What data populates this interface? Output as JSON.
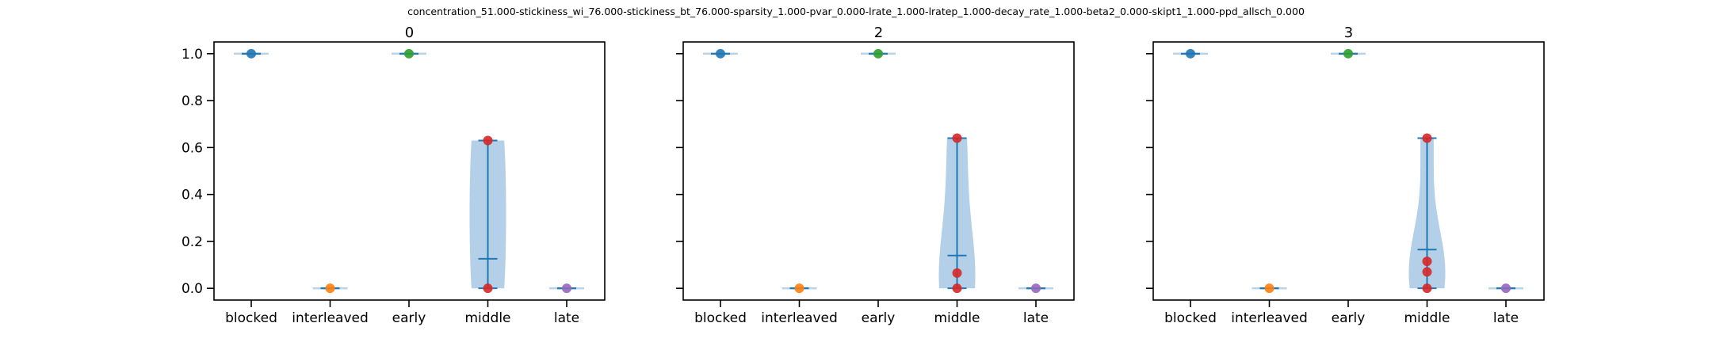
{
  "figure": {
    "title": "concentration_51.000-stickiness_wi_76.000-stickiness_bt_76.000-sparsity_1.000-pvar_0.000-lrate_1.000-lratep_1.000-decay_rate_1.000-beta2_0.000-skipt1_1.000-ppd_allsch_0.000"
  },
  "chart_data": [
    {
      "type": "violin",
      "title": "0",
      "categories": [
        "blocked",
        "interleaved",
        "early",
        "middle",
        "late"
      ],
      "ylim": [
        -0.05,
        1.05
      ],
      "yticks": [
        0.0,
        0.2,
        0.4,
        0.6,
        0.8,
        1.0
      ],
      "ytick_labels": [
        "0.0",
        "0.2",
        "0.4",
        "0.6",
        "0.8",
        "1.0"
      ],
      "show_ytick_labels": true,
      "grid": false,
      "point_colors": [
        "#1f77b4",
        "#ff7f0e",
        "#2ca02c",
        "#d62728",
        "#9467bd"
      ],
      "violin_color": "#a6c8e4",
      "stats_color": "#1f77b4",
      "points": [
        [
          1.0
        ],
        [
          0.0
        ],
        [
          1.0
        ],
        [
          0.0,
          0.63
        ],
        [
          0.0
        ]
      ],
      "violins": [
        {
          "min": 1.0,
          "max": 1.0,
          "mean": 1.0
        },
        {
          "min": 0.0,
          "max": 0.0,
          "mean": 0.0
        },
        {
          "min": 1.0,
          "max": 1.0,
          "mean": 1.0
        },
        {
          "min": 0.0,
          "max": 0.63,
          "mean": 0.126
        },
        {
          "min": 0.0,
          "max": 0.0,
          "mean": 0.0
        }
      ]
    },
    {
      "type": "violin",
      "title": "2",
      "categories": [
        "blocked",
        "interleaved",
        "early",
        "middle",
        "late"
      ],
      "ylim": [
        -0.05,
        1.05
      ],
      "yticks": [
        0.0,
        0.2,
        0.4,
        0.6,
        0.8,
        1.0
      ],
      "ytick_labels": [
        "0.0",
        "0.2",
        "0.4",
        "0.6",
        "0.8",
        "1.0"
      ],
      "show_ytick_labels": false,
      "grid": false,
      "point_colors": [
        "#1f77b4",
        "#ff7f0e",
        "#2ca02c",
        "#d62728",
        "#9467bd"
      ],
      "violin_color": "#a6c8e4",
      "stats_color": "#1f77b4",
      "points": [
        [
          1.0
        ],
        [
          0.0
        ],
        [
          1.0
        ],
        [
          0.0,
          0.065,
          0.64
        ],
        [
          0.0
        ]
      ],
      "violins": [
        {
          "min": 1.0,
          "max": 1.0,
          "mean": 1.0
        },
        {
          "min": 0.0,
          "max": 0.0,
          "mean": 0.0
        },
        {
          "min": 1.0,
          "max": 1.0,
          "mean": 1.0
        },
        {
          "min": 0.0,
          "max": 0.64,
          "mean": 0.14
        },
        {
          "min": 0.0,
          "max": 0.0,
          "mean": 0.0
        }
      ]
    },
    {
      "type": "violin",
      "title": "3",
      "categories": [
        "blocked",
        "interleaved",
        "early",
        "middle",
        "late"
      ],
      "ylim": [
        -0.05,
        1.05
      ],
      "yticks": [
        0.0,
        0.2,
        0.4,
        0.6,
        0.8,
        1.0
      ],
      "ytick_labels": [
        "0.0",
        "0.2",
        "0.4",
        "0.6",
        "0.8",
        "1.0"
      ],
      "show_ytick_labels": false,
      "grid": false,
      "point_colors": [
        "#1f77b4",
        "#ff7f0e",
        "#2ca02c",
        "#d62728",
        "#9467bd"
      ],
      "violin_color": "#a6c8e4",
      "stats_color": "#1f77b4",
      "points": [
        [
          1.0
        ],
        [
          0.0
        ],
        [
          1.0
        ],
        [
          0.0,
          0.07,
          0.115,
          0.64
        ],
        [
          0.0
        ]
      ],
      "violins": [
        {
          "min": 1.0,
          "max": 1.0,
          "mean": 1.0
        },
        {
          "min": 0.0,
          "max": 0.0,
          "mean": 0.0
        },
        {
          "min": 1.0,
          "max": 1.0,
          "mean": 1.0
        },
        {
          "min": 0.0,
          "max": 0.64,
          "mean": 0.165
        },
        {
          "min": 0.0,
          "max": 0.0,
          "mean": 0.0
        }
      ]
    }
  ]
}
